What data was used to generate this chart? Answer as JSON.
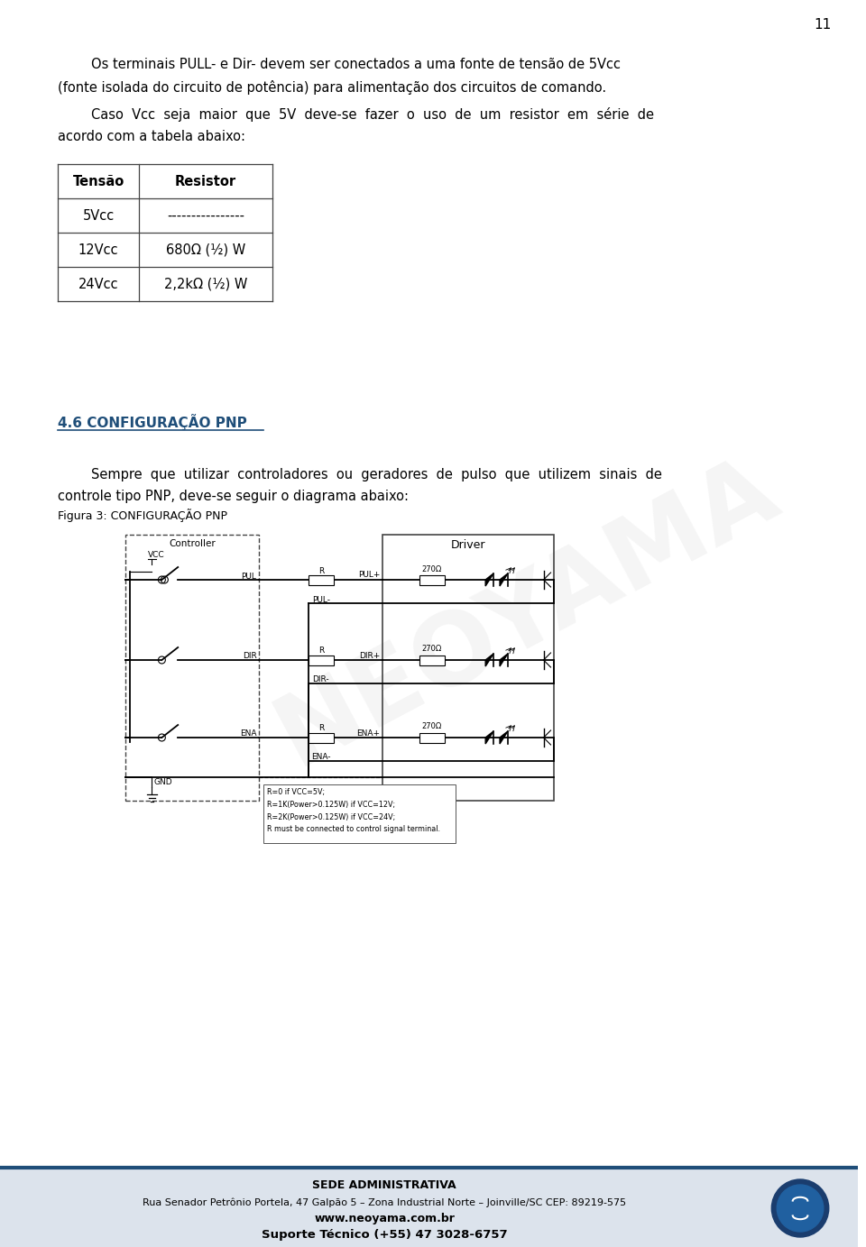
{
  "page_number": "11",
  "bg_color": "#ffffff",
  "text_color": "#000000",
  "para1_line1": "        Os terminais PULL- e Dir- devem ser conectados a uma fonte de tensão de 5Vcc",
  "para1_line2": "(fonte isolada do circuito de potência) para alimentação dos circuitos de comando.",
  "para2_line1": "        Caso  Vcc  seja  maior  que  5V  deve-se  fazer  o  uso  de  um  resistor  em  série  de",
  "para2_line2": "acordo com a tabela abaixo:",
  "table_headers": [
    "Tensão",
    "Resistor"
  ],
  "table_rows": [
    [
      "5Vcc",
      "----------------"
    ],
    [
      "12Vcc",
      "680Ω (½) W"
    ],
    [
      "24Vcc",
      "2,2kΩ (½) W"
    ]
  ],
  "section_title": "4.6 CONFIGURAÇÃO PNP",
  "section_title_color": "#1f4e79",
  "para3_line1": "        Sempre  que  utilizar  controladores  ou  geradores  de  pulso  que  utilizem  sinais  de",
  "para3_line2": "controle tipo PNP, deve-se seguir o diagrama abaixo:",
  "fig_caption": "Figura 3: CONFIGURAÇÃO PNP",
  "watermark_text": "NEOYAMA",
  "footer_line1": "SEDE ADMINISTRATIVA",
  "footer_line2": "Rua Senador Petrônio Portela, 47 Galpão 5 – Zona Industrial Norte – Joinville/SC CEP: 89219-575",
  "footer_line3": "www.neoyama.com.br",
  "footer_line4": "Suporte Técnico (+55) 47 3028-6757",
  "footer_bar_color": "#1f4e79",
  "footer_bg_color": "#dce3ec",
  "note_lines": [
    "R=0 if VCC=5V;",
    "R=1K(Power>0.125W) if VCC=12V;",
    "R=2K(Power>0.125W) if VCC=24V;",
    "R must be connected to control signal terminal."
  ]
}
